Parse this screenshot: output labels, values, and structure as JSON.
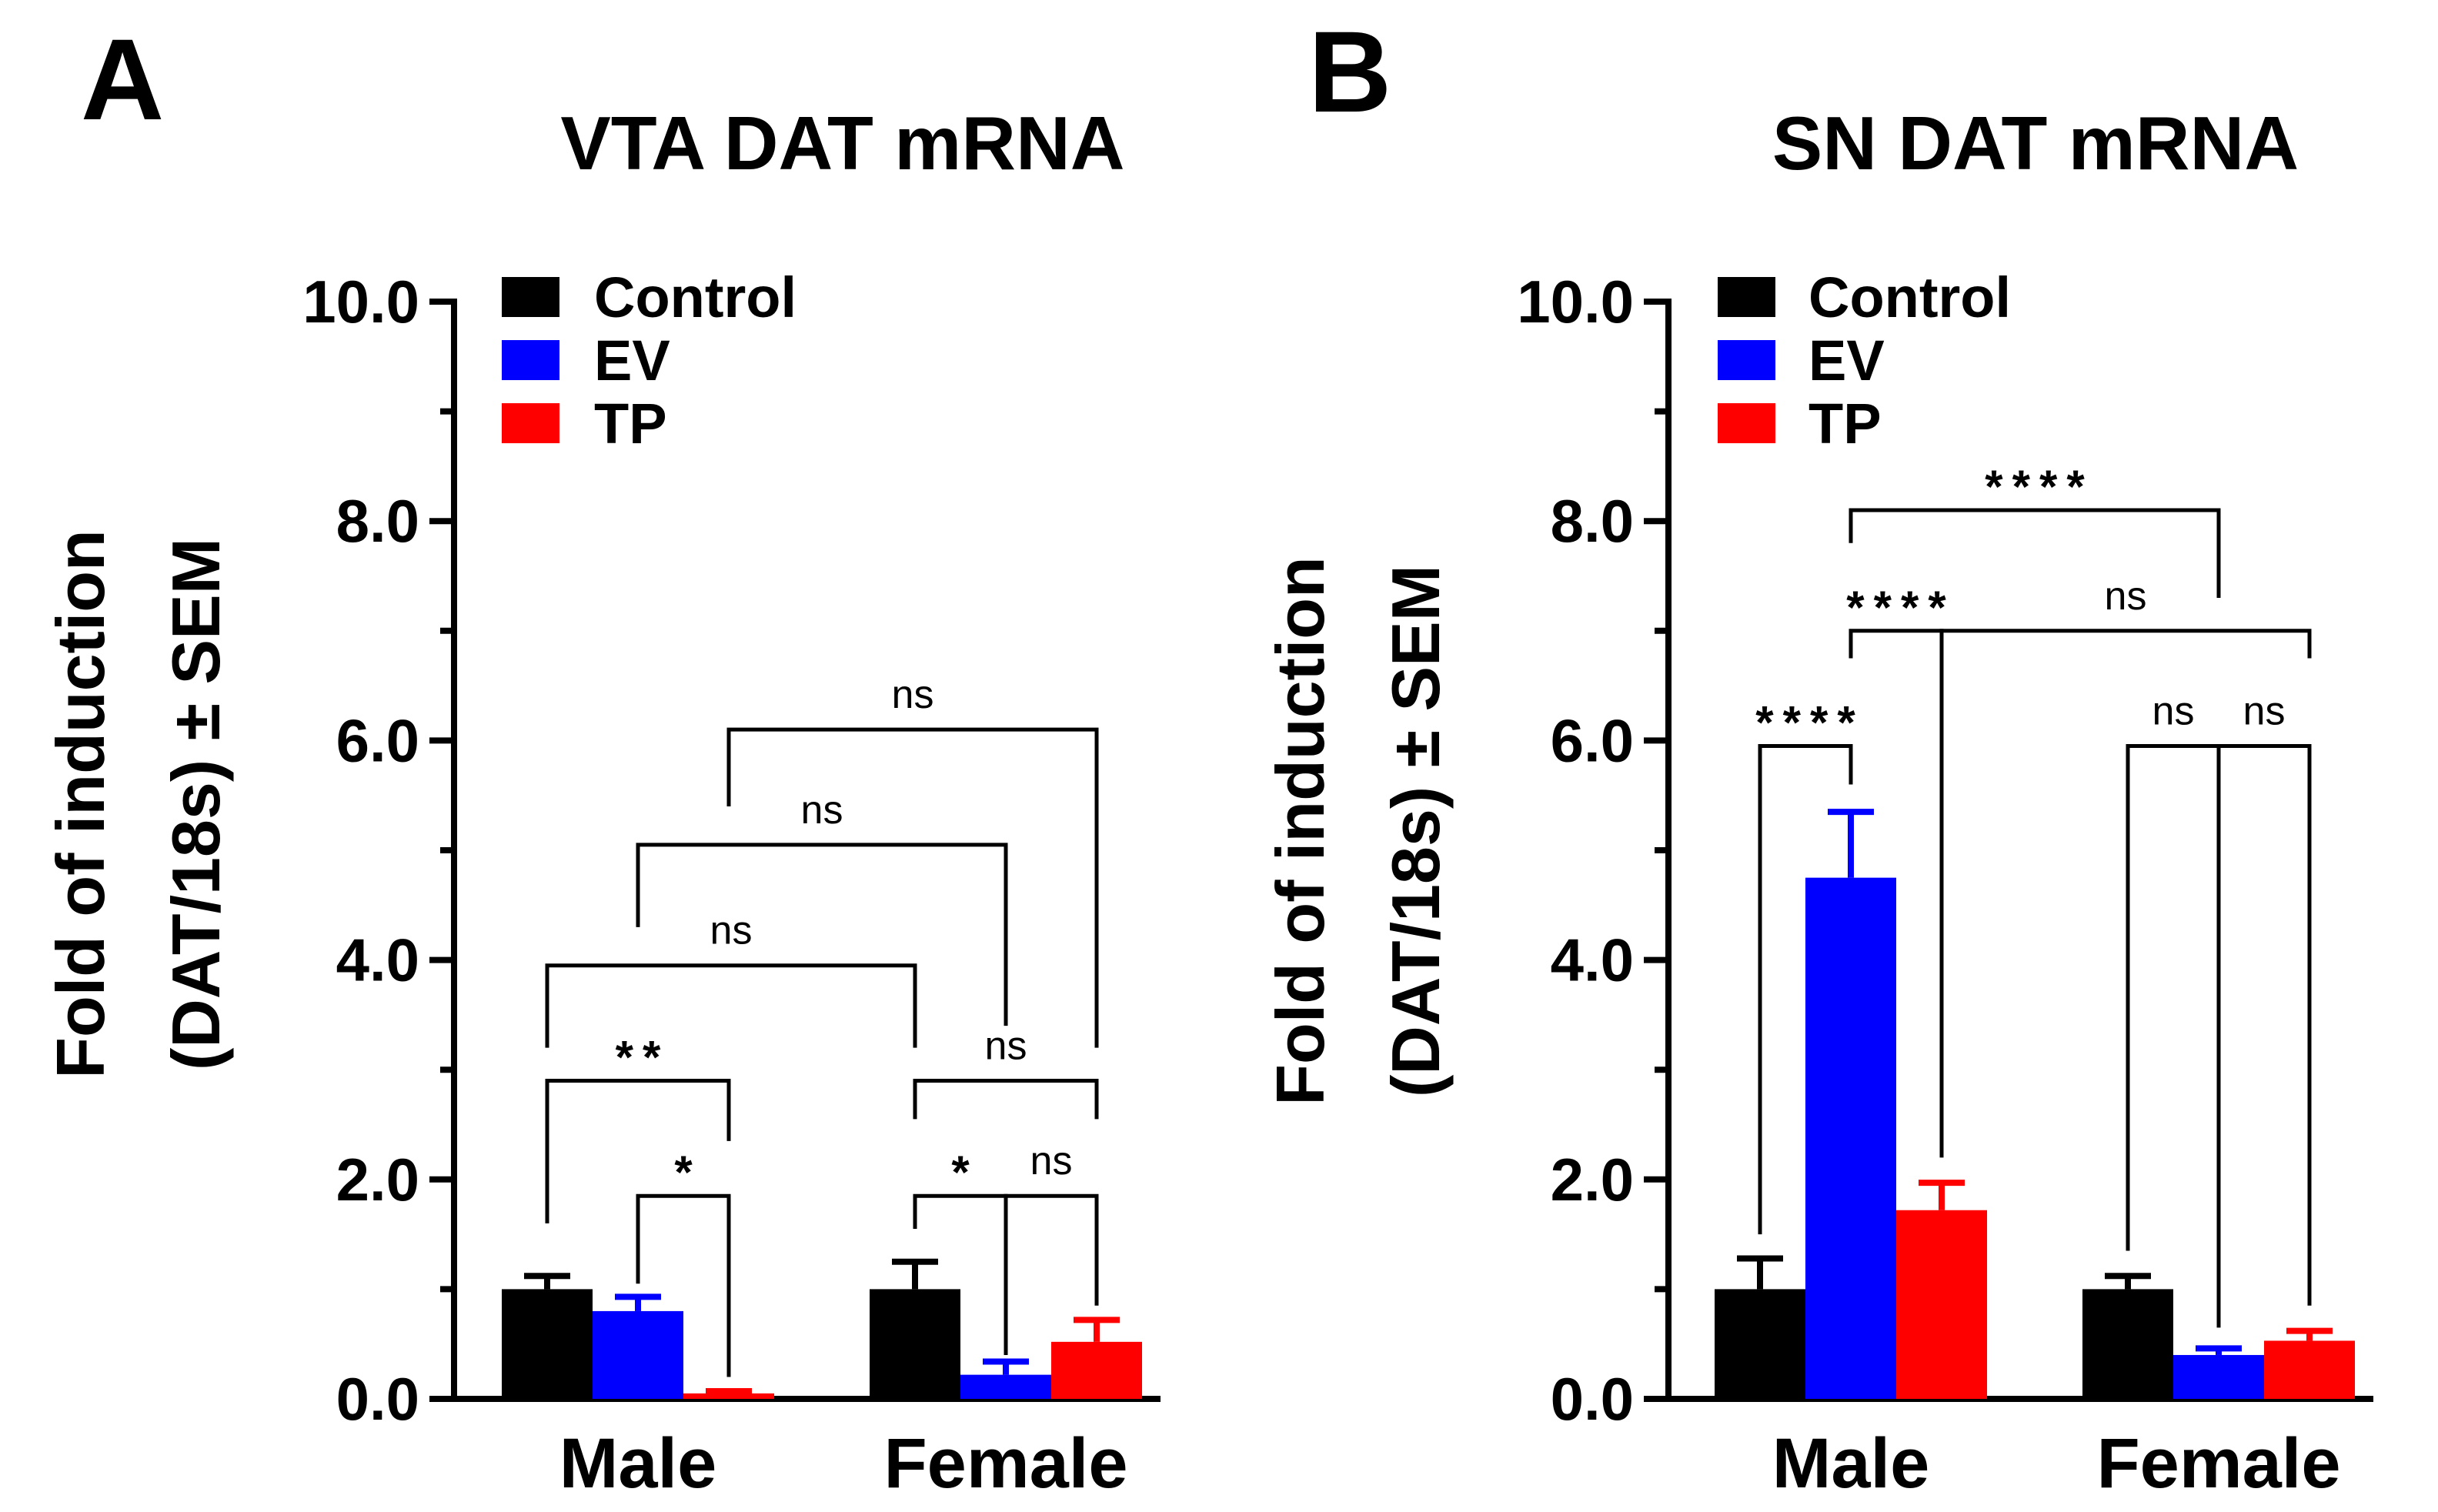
{
  "colors": {
    "Control": "#000000",
    "EV": "#0000ff",
    "TP": "#ff0000"
  },
  "chart_data": [
    {
      "type": "bar",
      "panel": "A",
      "title": "VTA DAT mRNA",
      "ylabel_line1": "Fold of induction",
      "ylabel_line2": "(DAT/18s) ± SEM",
      "xlabel": "",
      "ylim": [
        0,
        10
      ],
      "yticks": [
        0,
        2,
        4,
        6,
        8,
        10
      ],
      "ytick_labels": [
        "0.0",
        "2.0",
        "4.0",
        "6.0",
        "8.0",
        "10.0"
      ],
      "categories": [
        "Male",
        "Female"
      ],
      "legend": [
        "Control",
        "EV",
        "TP"
      ],
      "legend_position": "top-left",
      "series": [
        {
          "name": "Control",
          "values": [
            1.0,
            1.0
          ],
          "errors": [
            0.12,
            0.25
          ]
        },
        {
          "name": "EV",
          "values": [
            0.8,
            0.22
          ],
          "errors": [
            0.13,
            0.12
          ]
        },
        {
          "name": "TP",
          "values": [
            0.05,
            0.52
          ],
          "errors": [
            0.02,
            0.2
          ]
        }
      ],
      "comparisons": [
        {
          "label": "*",
          "from": [
            0,
            1
          ],
          "to": [
            0,
            2
          ],
          "y": 1.85,
          "from_drop": 1.05,
          "to_drop": 0.2
        },
        {
          "label": "**",
          "from": [
            0,
            0
          ],
          "to": [
            0,
            2
          ],
          "y": 2.9,
          "from_drop": 1.6,
          "to_drop": 2.35
        },
        {
          "label": "*",
          "from": [
            1,
            0
          ],
          "to": [
            1,
            1
          ],
          "y": 1.85,
          "from_drop": 1.55,
          "to_drop": 0.4
        },
        {
          "label": "ns",
          "from": [
            1,
            1
          ],
          "to": [
            1,
            2
          ],
          "y": 1.85,
          "from_drop": 0.55,
          "to_drop": 0.85
        },
        {
          "label": "ns",
          "from": [
            1,
            0
          ],
          "to": [
            1,
            2
          ],
          "y": 2.9,
          "from_drop": 2.55,
          "to_drop": 2.55
        },
        {
          "label": "ns",
          "from": [
            0,
            0
          ],
          "to": [
            1,
            0
          ],
          "y": 3.95,
          "from_drop": 3.2,
          "to_drop": 3.2
        },
        {
          "label": "ns",
          "from": [
            0,
            1
          ],
          "to": [
            1,
            1
          ],
          "y": 5.05,
          "from_drop": 4.3,
          "to_drop": 3.4
        },
        {
          "label": "ns",
          "from": [
            0,
            2
          ],
          "to": [
            1,
            2
          ],
          "y": 6.1,
          "from_drop": 5.4,
          "to_drop": 3.2
        }
      ]
    },
    {
      "type": "bar",
      "panel": "B",
      "title": "SN DAT mRNA",
      "ylabel_line1": "Fold of induction",
      "ylabel_line2": "(DAT/18s) ± SEM",
      "xlabel": "",
      "ylim": [
        0,
        10
      ],
      "yticks": [
        0,
        2,
        4,
        6,
        8,
        10
      ],
      "ytick_labels": [
        "0.0",
        "2.0",
        "4.0",
        "6.0",
        "8.0",
        "10.0"
      ],
      "categories": [
        "Male",
        "Female"
      ],
      "legend": [
        "Control",
        "EV",
        "TP"
      ],
      "legend_position": "top-left",
      "series": [
        {
          "name": "Control",
          "values": [
            1.0,
            1.0
          ],
          "errors": [
            0.28,
            0.12
          ]
        },
        {
          "name": "EV",
          "values": [
            4.75,
            0.4
          ],
          "errors": [
            0.6,
            0.06
          ]
        },
        {
          "name": "TP",
          "values": [
            1.72,
            0.53
          ],
          "errors": [
            0.25,
            0.09
          ]
        }
      ],
      "comparisons": [
        {
          "label": "****",
          "from": [
            0,
            0
          ],
          "to": [
            0,
            1
          ],
          "y": 5.95,
          "from_drop": 1.5,
          "to_drop": 5.6
        },
        {
          "label": "****",
          "from": [
            0,
            1
          ],
          "to": [
            0,
            2
          ],
          "y": 7.0,
          "from_drop": 6.75,
          "to_drop": 2.2
        },
        {
          "label": "ns",
          "from": [
            1,
            0
          ],
          "to": [
            1,
            1
          ],
          "y": 5.95,
          "from_drop": 1.35,
          "to_drop": 0.65
        },
        {
          "label": "ns",
          "from": [
            1,
            1
          ],
          "to": [
            1,
            2
          ],
          "y": 5.95,
          "from_drop": 0.65,
          "to_drop": 0.85
        },
        {
          "label": "ns",
          "from": [
            0,
            2
          ],
          "to": [
            1,
            2
          ],
          "y": 7.0,
          "from_drop": 2.2,
          "to_drop": 6.75
        },
        {
          "label": "****",
          "from": [
            0,
            1
          ],
          "to": [
            1,
            1
          ],
          "y": 8.1,
          "from_drop": 7.8,
          "to_drop": 7.3
        }
      ]
    }
  ]
}
